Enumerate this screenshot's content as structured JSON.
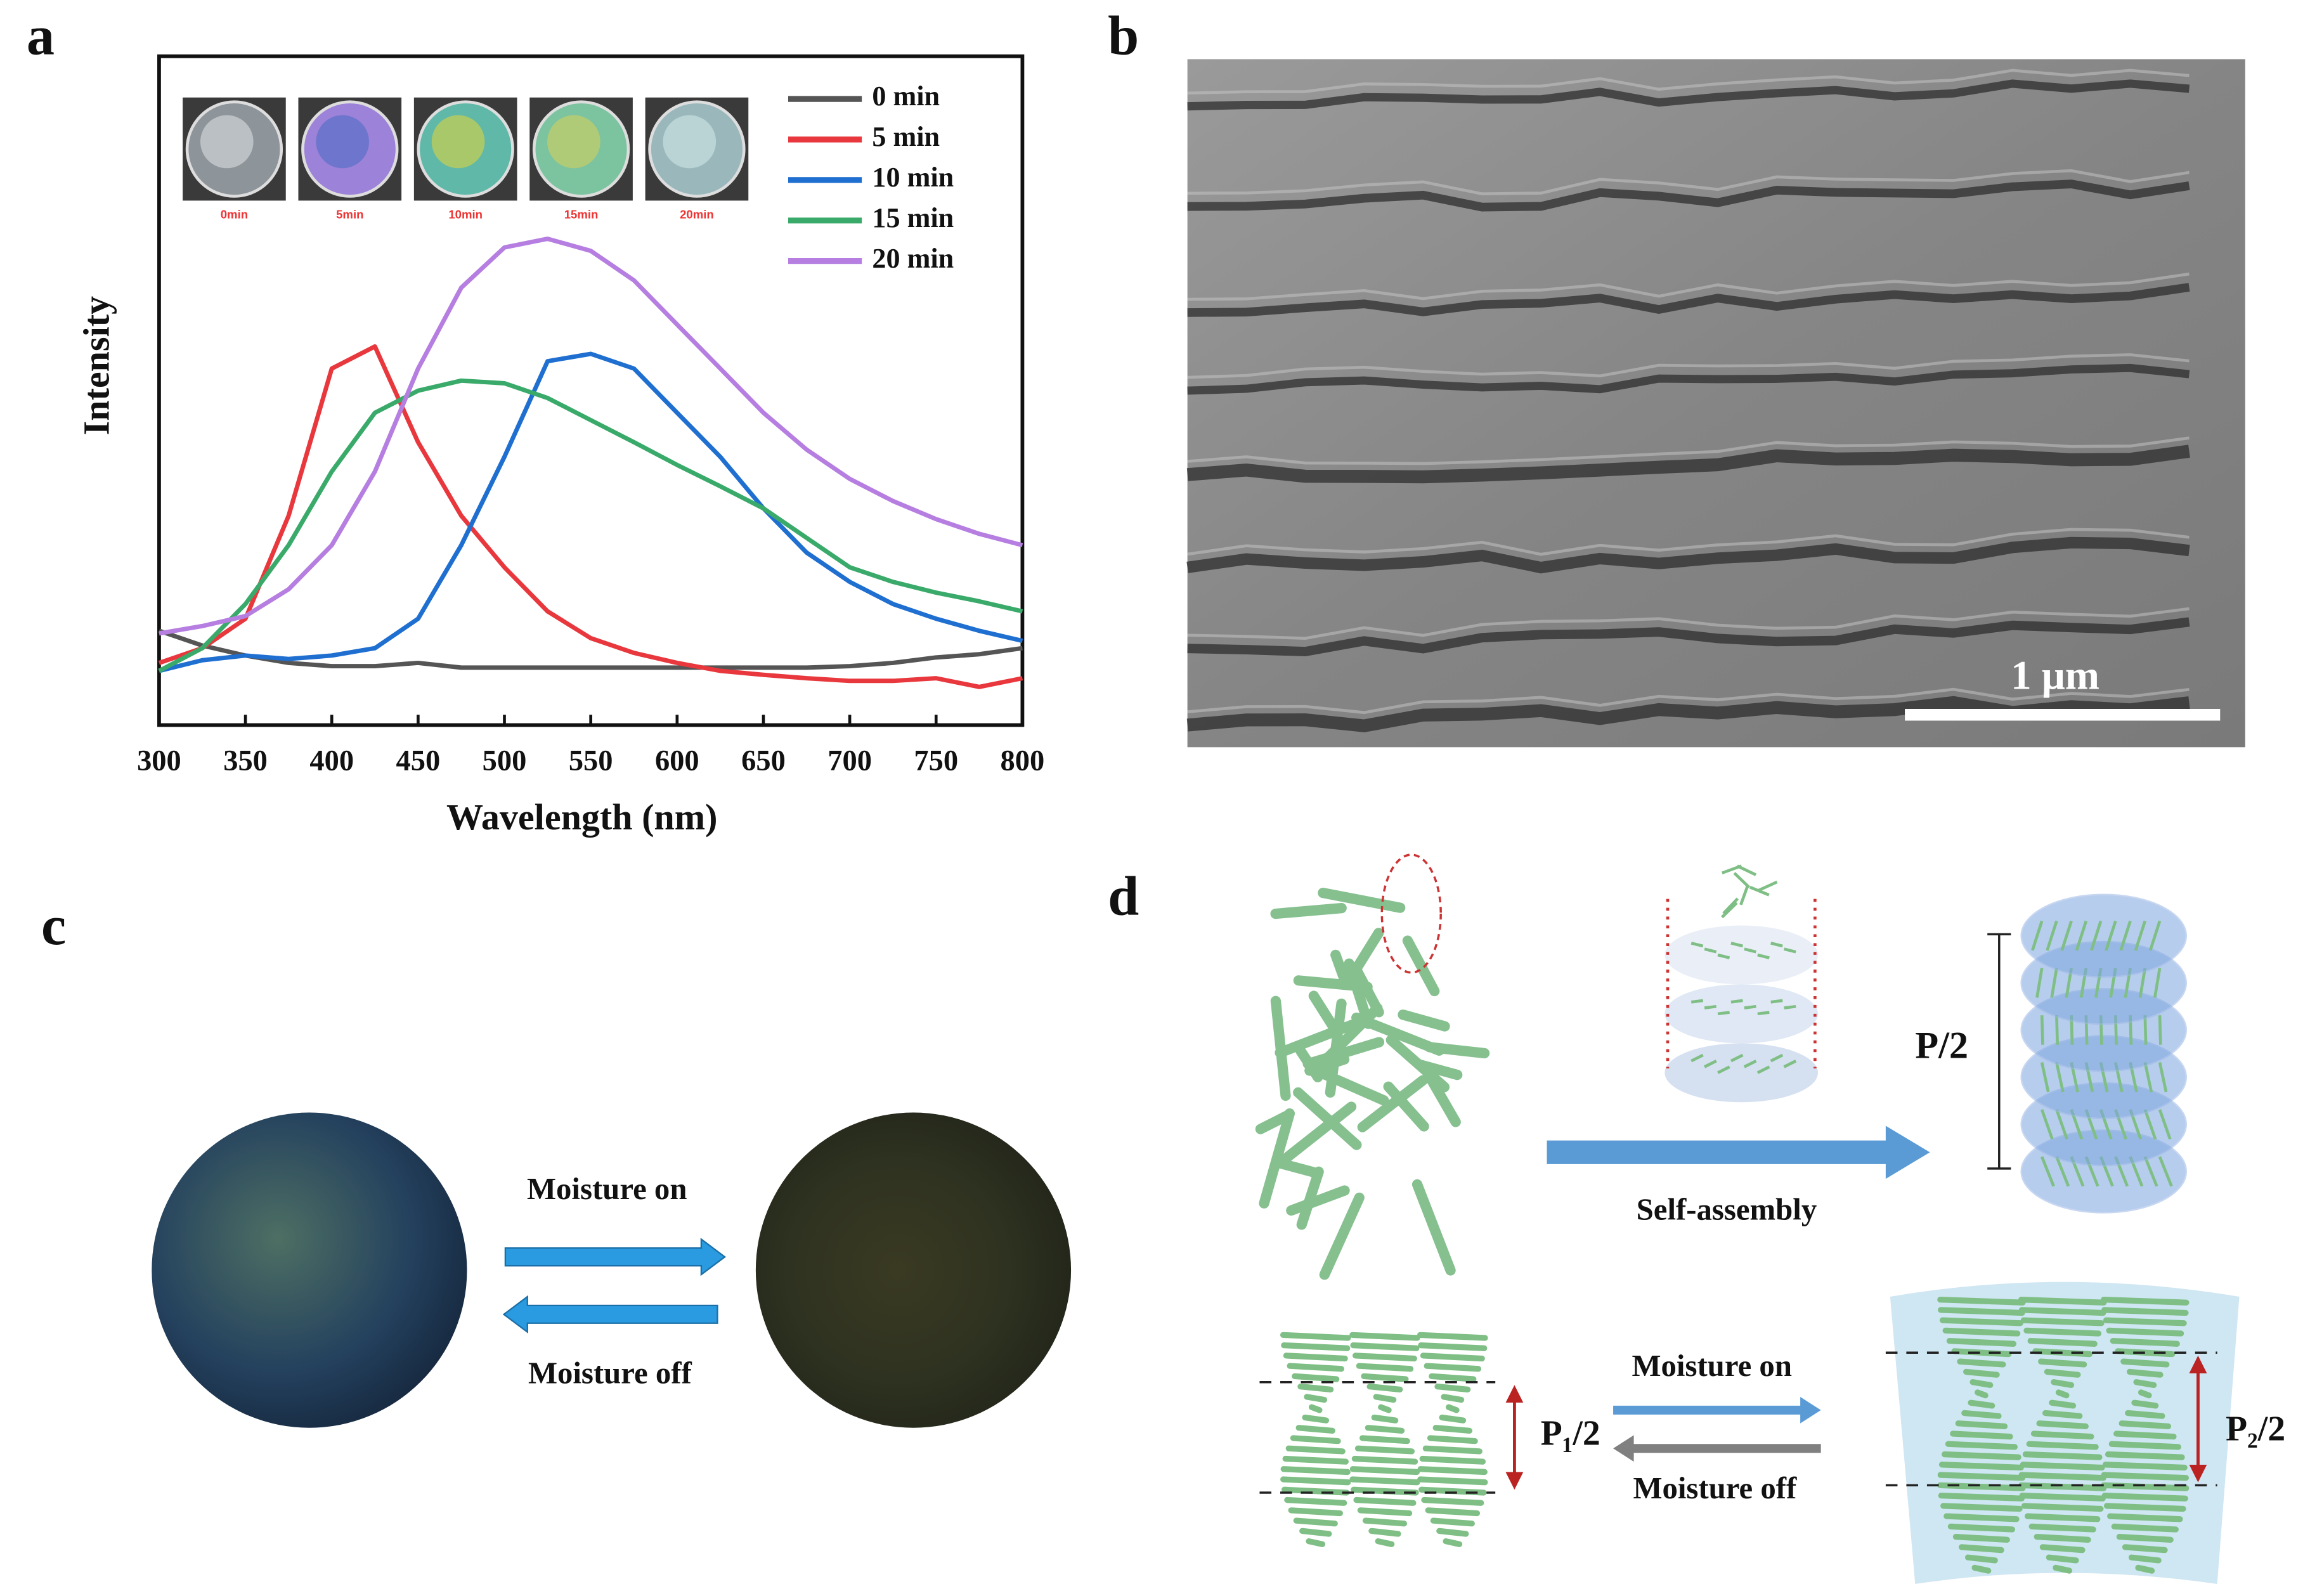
{
  "chart_data": {
    "type": "line",
    "xlabel": "Wavelength (nm)",
    "ylabel": "Intensity",
    "x": [
      300,
      325,
      350,
      375,
      400,
      425,
      450,
      475,
      500,
      525,
      550,
      575,
      600,
      625,
      650,
      675,
      700,
      725,
      750,
      775,
      800
    ],
    "series": [
      {
        "name": "0 min",
        "color": "#555555",
        "values": [
          14.1,
          11.9,
          10.4,
          9.3,
          8.8,
          8.8,
          9.3,
          8.6,
          8.6,
          8.6,
          8.6,
          8.6,
          8.6,
          8.6,
          8.6,
          8.6,
          8.8,
          9.3,
          10.1,
          10.6,
          11.5
        ]
      },
      {
        "name": "5 min",
        "color": "#e8383d",
        "values": [
          9.3,
          11.5,
          15.9,
          31.3,
          53.3,
          56.6,
          42.3,
          31.3,
          23.6,
          17,
          13,
          10.8,
          9.3,
          8.1,
          7.5,
          7,
          6.6,
          6.6,
          7,
          5.7,
          7
        ]
      },
      {
        "name": "10 min",
        "color": "#1f6fd1",
        "values": [
          8.1,
          9.7,
          10.4,
          9.9,
          10.4,
          11.5,
          15.9,
          26.9,
          40.1,
          54.4,
          55.5,
          53.3,
          46.7,
          40.1,
          32.4,
          25.8,
          21.4,
          18.1,
          15.9,
          14.1,
          12.6
        ]
      },
      {
        "name": "15 min",
        "color": "#3aaa6a",
        "values": [
          8.1,
          11.5,
          18.1,
          26.9,
          37.9,
          46.7,
          50,
          51.5,
          51.1,
          48.9,
          45.6,
          42.3,
          38.9,
          35.7,
          32.4,
          28,
          23.6,
          21.4,
          19.8,
          18.5,
          17
        ]
      },
      {
        "name": "20 min",
        "color": "#b57ee0",
        "values": [
          13.7,
          14.8,
          16.3,
          20.3,
          26.9,
          37.9,
          53.3,
          65.4,
          71.4,
          72.7,
          70.9,
          66.5,
          59.9,
          53.3,
          46.7,
          41.2,
          36.8,
          33.5,
          30.8,
          28.6,
          26.9
        ]
      }
    ],
    "xlim": [
      300,
      800
    ],
    "xticks": [
      300,
      350,
      400,
      450,
      500,
      550,
      600,
      650,
      700,
      750,
      800
    ],
    "ylim": [
      0,
      100
    ],
    "inset_labels": [
      "0min",
      "5min",
      "10min",
      "15min",
      "20min"
    ]
  },
  "panel_labels": [
    "a",
    "b",
    "c",
    "d"
  ],
  "panel_b": {
    "scale_bar": "1 μm"
  },
  "panel_c": {
    "arrow_on": "Moisture on",
    "arrow_off": "Moisture off"
  },
  "panel_d": {
    "process": "Self-assembly",
    "pitch": "P/2",
    "arrow_on": "Moisture on",
    "arrow_off": "Moisture off",
    "pitch_1": "P₁/2",
    "pitch_2": "P₂/2"
  }
}
